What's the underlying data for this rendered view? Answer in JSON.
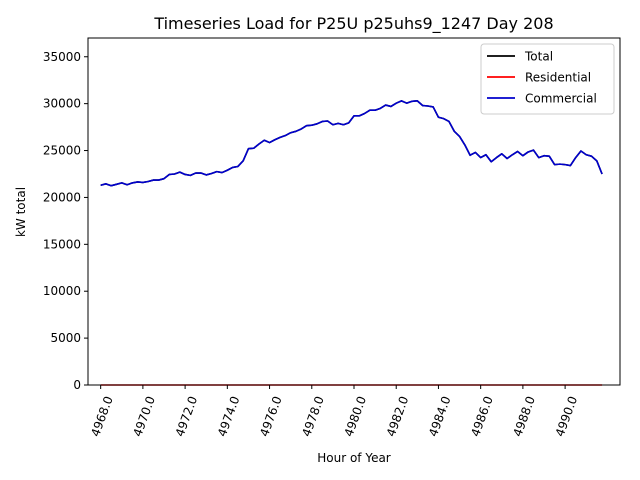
{
  "chart_data": {
    "type": "line",
    "title": "Timeseries Load for P25U p25uhs9_1247  Day 208",
    "xlabel": "Hour of Year",
    "ylabel": "kW total",
    "xlim": [
      4967.4,
      4992.6
    ],
    "ylim": [
      0,
      37000
    ],
    "xticks": [
      4968,
      4970,
      4972,
      4974,
      4976,
      4978,
      4980,
      4982,
      4984,
      4986,
      4988,
      4990
    ],
    "xtick_labels": [
      "4968.0",
      "4970.0",
      "4972.0",
      "4974.0",
      "4976.0",
      "4978.0",
      "4980.0",
      "4982.0",
      "4984.0",
      "4986.0",
      "4988.0",
      "4990.0"
    ],
    "yticks": [
      0,
      5000,
      10000,
      15000,
      20000,
      25000,
      30000,
      35000
    ],
    "ytick_labels": [
      "0",
      "5000",
      "10000",
      "15000",
      "20000",
      "25000",
      "30000",
      "35000"
    ],
    "grid": false,
    "legend_position": "upper right",
    "x": [
      4968.0,
      4968.25,
      4968.5,
      4968.75,
      4969.0,
      4969.25,
      4969.5,
      4969.75,
      4970.0,
      4970.25,
      4970.5,
      4970.75,
      4971.0,
      4971.25,
      4971.5,
      4971.75,
      4972.0,
      4972.25,
      4972.5,
      4972.75,
      4973.0,
      4973.25,
      4973.5,
      4973.75,
      4974.0,
      4974.25,
      4974.5,
      4974.75,
      4975.0,
      4975.25,
      4975.5,
      4975.75,
      4976.0,
      4976.25,
      4976.5,
      4976.75,
      4977.0,
      4977.25,
      4977.5,
      4977.75,
      4978.0,
      4978.25,
      4978.5,
      4978.75,
      4979.0,
      4979.25,
      4979.5,
      4979.75,
      4980.0,
      4980.25,
      4980.5,
      4980.75,
      4981.0,
      4981.25,
      4981.5,
      4981.75,
      4982.0,
      4982.25,
      4982.5,
      4982.75,
      4983.0,
      4983.25,
      4983.5,
      4983.75,
      4984.0,
      4984.25,
      4984.5,
      4984.75,
      4985.0,
      4985.25,
      4985.5,
      4985.75,
      4986.0,
      4986.25,
      4986.5,
      4986.75,
      4987.0,
      4987.25,
      4987.5,
      4987.75,
      4988.0,
      4988.25,
      4988.5,
      4988.75,
      4989.0,
      4989.25,
      4989.5,
      4989.75,
      4990.0,
      4990.25,
      4990.5,
      4990.75,
      4991.0,
      4991.25,
      4991.5,
      4991.75
    ],
    "series": [
      {
        "name": "Total",
        "color": "#000000",
        "values": [
          21300,
          21450,
          21250,
          21400,
          21550,
          21350,
          21550,
          21650,
          21600,
          21700,
          21850,
          21850,
          22000,
          22450,
          22500,
          22700,
          22450,
          22350,
          22600,
          22600,
          22400,
          22550,
          22750,
          22650,
          22900,
          23200,
          23300,
          23900,
          25200,
          25250,
          25700,
          26100,
          25850,
          26150,
          26400,
          26600,
          26900,
          27050,
          27300,
          27650,
          27700,
          27850,
          28100,
          28150,
          27750,
          27900,
          27750,
          27950,
          28700,
          28700,
          28950,
          29300,
          29300,
          29500,
          29850,
          29700,
          30050,
          30300,
          30050,
          30250,
          30300,
          29800,
          29750,
          29650,
          28550,
          28400,
          28100,
          27050,
          26500,
          25600,
          24500,
          24800,
          24250,
          24550,
          23800,
          24250,
          24650,
          24150,
          24550,
          24900,
          24450,
          24850,
          25050,
          24250,
          24450,
          24400,
          23500,
          23550,
          23500,
          23400,
          24250,
          24950,
          24550,
          24400,
          23900,
          22500
        ]
      },
      {
        "name": "Residential",
        "color": "#ff0000",
        "values": [
          0,
          0,
          0,
          0,
          0,
          0,
          0,
          0,
          0,
          0,
          0,
          0,
          0,
          0,
          0,
          0,
          0,
          0,
          0,
          0,
          0,
          0,
          0,
          0,
          0,
          0,
          0,
          0,
          0,
          0,
          0,
          0,
          0,
          0,
          0,
          0,
          0,
          0,
          0,
          0,
          0,
          0,
          0,
          0,
          0,
          0,
          0,
          0,
          0,
          0,
          0,
          0,
          0,
          0,
          0,
          0,
          0,
          0,
          0,
          0,
          0,
          0,
          0,
          0,
          0,
          0,
          0,
          0,
          0,
          0,
          0,
          0,
          0,
          0,
          0,
          0,
          0,
          0,
          0,
          0,
          0,
          0,
          0,
          0,
          0,
          0,
          0,
          0,
          0,
          0,
          0,
          0,
          0,
          0,
          0,
          0
        ]
      },
      {
        "name": "Commercial",
        "color": "#0000cc",
        "values": [
          21300,
          21450,
          21250,
          21400,
          21550,
          21350,
          21550,
          21650,
          21600,
          21700,
          21850,
          21850,
          22000,
          22450,
          22500,
          22700,
          22450,
          22350,
          22600,
          22600,
          22400,
          22550,
          22750,
          22650,
          22900,
          23200,
          23300,
          23900,
          25200,
          25250,
          25700,
          26100,
          25850,
          26150,
          26400,
          26600,
          26900,
          27050,
          27300,
          27650,
          27700,
          27850,
          28100,
          28150,
          27750,
          27900,
          27750,
          27950,
          28700,
          28700,
          28950,
          29300,
          29300,
          29500,
          29850,
          29700,
          30050,
          30300,
          30050,
          30250,
          30300,
          29800,
          29750,
          29650,
          28550,
          28400,
          28100,
          27050,
          26500,
          25600,
          24500,
          24800,
          24250,
          24550,
          23800,
          24250,
          24650,
          24150,
          24550,
          24900,
          24450,
          24850,
          25050,
          24250,
          24450,
          24400,
          23500,
          23550,
          23500,
          23400,
          24250,
          24950,
          24550,
          24400,
          23900,
          22500
        ]
      }
    ]
  }
}
